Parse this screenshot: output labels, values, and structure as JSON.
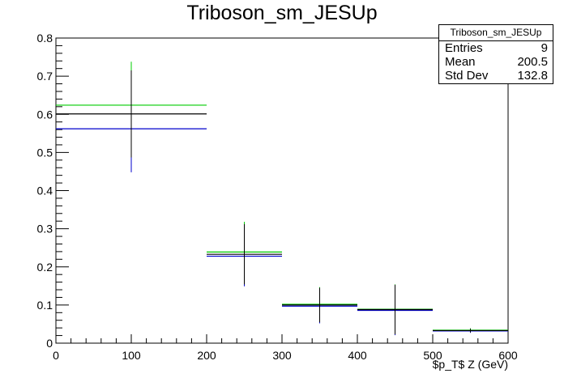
{
  "title": "Triboson_sm_JESUp",
  "stats": {
    "name": "Triboson_sm_JESUp",
    "rows": [
      {
        "label": "Entries",
        "value": "9"
      },
      {
        "label": "Mean",
        "value": "200.5"
      },
      {
        "label": "Std Dev",
        "value": "132.8"
      }
    ]
  },
  "colors": {
    "nominal": "#000000",
    "green": "#00cc00",
    "blue": "#0000cc"
  },
  "chart_data": {
    "type": "scatter",
    "title": "Triboson_sm_JESUp",
    "xlabel": "$p_T$ Z (GeV)",
    "ylabel": "",
    "xlim": [
      0,
      600
    ],
    "ylim": [
      0,
      0.8
    ],
    "xticks": [
      "0",
      "100",
      "200",
      "300",
      "400",
      "500",
      "600"
    ],
    "yticks": [
      "0",
      "0.1",
      "0.2",
      "0.3",
      "0.4",
      "0.5",
      "0.6",
      "0.7",
      "0.8"
    ],
    "bins": [
      [
        0,
        200
      ],
      [
        200,
        300
      ],
      [
        300,
        400
      ],
      [
        400,
        500
      ],
      [
        500,
        600
      ]
    ],
    "series": [
      {
        "values": [
          0.601,
          0.233,
          0.1,
          0.088,
          0.033
        ],
        "errors": [
          0.114,
          0.079,
          0.045,
          0.065,
          0.005
        ]
      },
      {
        "values": [
          0.624,
          0.239,
          0.102,
          0.089,
          0.034
        ],
        "errors": [
          0.114,
          0.079,
          0.045,
          0.065,
          0.005
        ]
      },
      {
        "values": [
          0.562,
          0.228,
          0.097,
          0.086,
          0.032
        ],
        "errors": [
          0.114,
          0.079,
          0.045,
          0.065,
          0.005
        ]
      }
    ],
    "grid": false
  }
}
